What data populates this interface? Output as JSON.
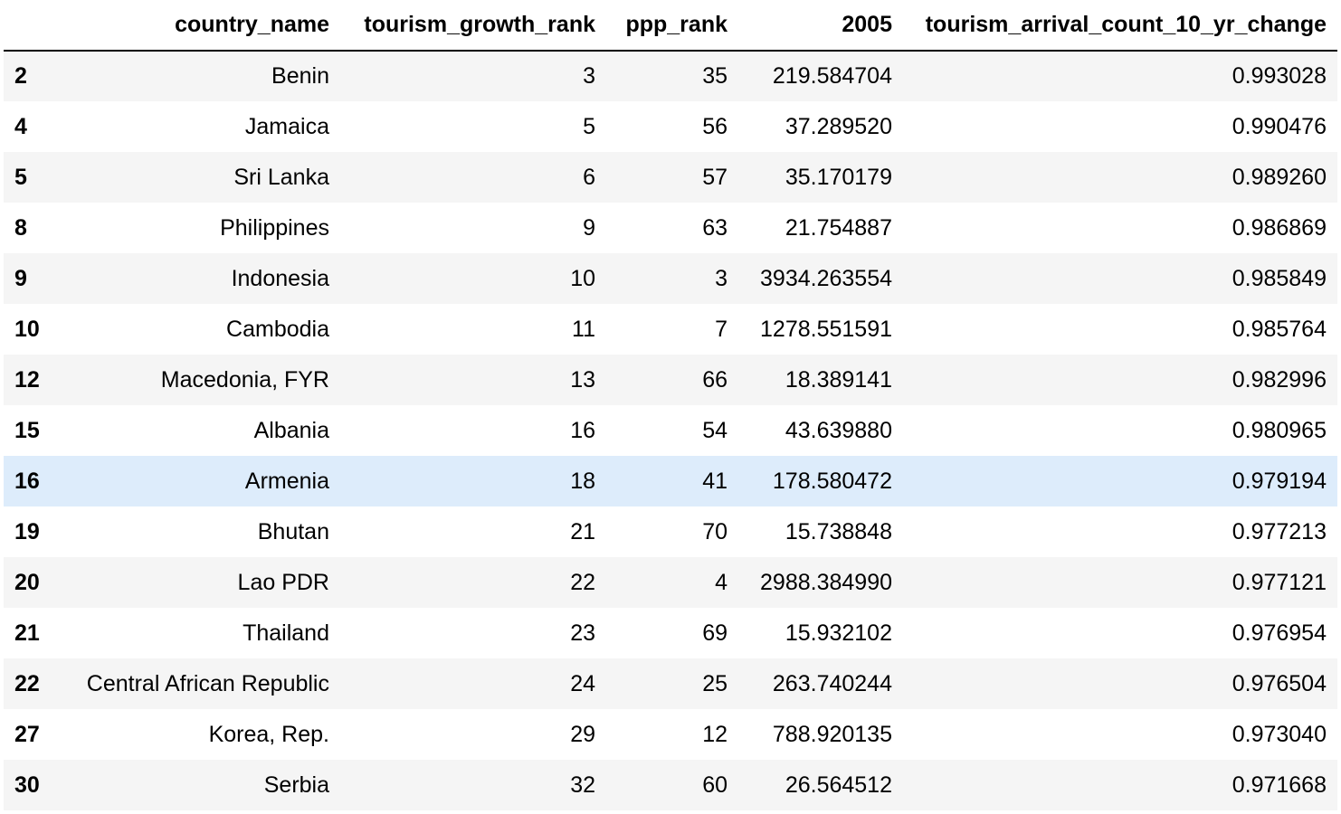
{
  "table": {
    "columns": [
      "",
      "country_name",
      "tourism_growth_rank",
      "ppp_rank",
      "2005",
      "tourism_arrival_count_10_yr_change"
    ],
    "highlight_color": "#ddecfb",
    "hovered_row_index": 8,
    "rows": [
      {
        "index": "2",
        "country_name": "Benin",
        "tourism_growth_rank": "3",
        "ppp_rank": "35",
        "y2005": "219.584704",
        "change": "0.993028"
      },
      {
        "index": "4",
        "country_name": "Jamaica",
        "tourism_growth_rank": "5",
        "ppp_rank": "56",
        "y2005": "37.289520",
        "change": "0.990476"
      },
      {
        "index": "5",
        "country_name": "Sri Lanka",
        "tourism_growth_rank": "6",
        "ppp_rank": "57",
        "y2005": "35.170179",
        "change": "0.989260"
      },
      {
        "index": "8",
        "country_name": "Philippines",
        "tourism_growth_rank": "9",
        "ppp_rank": "63",
        "y2005": "21.754887",
        "change": "0.986869"
      },
      {
        "index": "9",
        "country_name": "Indonesia",
        "tourism_growth_rank": "10",
        "ppp_rank": "3",
        "y2005": "3934.263554",
        "change": "0.985849"
      },
      {
        "index": "10",
        "country_name": "Cambodia",
        "tourism_growth_rank": "11",
        "ppp_rank": "7",
        "y2005": "1278.551591",
        "change": "0.985764"
      },
      {
        "index": "12",
        "country_name": "Macedonia, FYR",
        "tourism_growth_rank": "13",
        "ppp_rank": "66",
        "y2005": "18.389141",
        "change": "0.982996"
      },
      {
        "index": "15",
        "country_name": "Albania",
        "tourism_growth_rank": "16",
        "ppp_rank": "54",
        "y2005": "43.639880",
        "change": "0.980965"
      },
      {
        "index": "16",
        "country_name": "Armenia",
        "tourism_growth_rank": "18",
        "ppp_rank": "41",
        "y2005": "178.580472",
        "change": "0.979194"
      },
      {
        "index": "19",
        "country_name": "Bhutan",
        "tourism_growth_rank": "21",
        "ppp_rank": "70",
        "y2005": "15.738848",
        "change": "0.977213"
      },
      {
        "index": "20",
        "country_name": "Lao PDR",
        "tourism_growth_rank": "22",
        "ppp_rank": "4",
        "y2005": "2988.384990",
        "change": "0.977121"
      },
      {
        "index": "21",
        "country_name": "Thailand",
        "tourism_growth_rank": "23",
        "ppp_rank": "69",
        "y2005": "15.932102",
        "change": "0.976954"
      },
      {
        "index": "22",
        "country_name": "Central African Republic",
        "tourism_growth_rank": "24",
        "ppp_rank": "25",
        "y2005": "263.740244",
        "change": "0.976504"
      },
      {
        "index": "27",
        "country_name": "Korea, Rep.",
        "tourism_growth_rank": "29",
        "ppp_rank": "12",
        "y2005": "788.920135",
        "change": "0.973040"
      },
      {
        "index": "30",
        "country_name": "Serbia",
        "tourism_growth_rank": "32",
        "ppp_rank": "60",
        "y2005": "26.564512",
        "change": "0.971668"
      }
    ]
  }
}
